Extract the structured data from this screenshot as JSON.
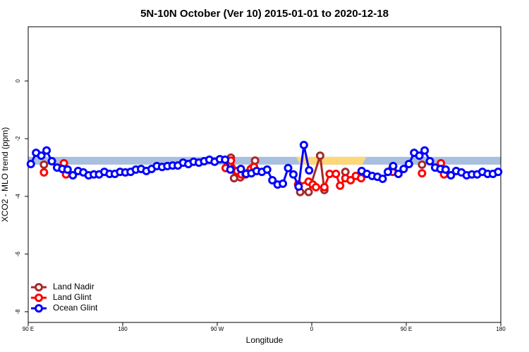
{
  "chart_data": {
    "type": "line",
    "title": "5N-10N October (Ver 10)   2015-01-01 to 2020-12-18",
    "x_label": "Longitude",
    "y_label": "XCO2 - MLO trend (ppm)",
    "xlim": [
      90,
      540
    ],
    "xticks": [
      {
        "value": 90,
        "label": "90 E"
      },
      180,
      {
        "value": 270,
        "label": "90 W"
      },
      {
        "value": 360,
        "label": "0"
      },
      {
        "value": 450,
        "label": "90 E"
      },
      {
        "value": 540,
        "label": "180"
      }
    ],
    "ylim": [
      -8.37,
      1.88
    ],
    "yticks": [
      0,
      -2,
      -4,
      -6,
      -8
    ],
    "band": {
      "ylim": [
        -2.9,
        -2.63
      ],
      "color": "#a9bfe0",
      "highlight_color": "#fdd77a",
      "highlight_x": [
        [
          345,
          412
        ]
      ]
    },
    "legend": "bottom-left",
    "series": [
      {
        "name": "Land Nadir",
        "color": "#a52a2a",
        "x": [
          105,
          283,
          286,
          292,
          306,
          349,
          357,
          368,
          372,
          392,
          437,
          465
        ],
        "values": [
          -2.9,
          -2.66,
          -3.37,
          -3.34,
          -2.76,
          -3.85,
          -3.85,
          -2.59,
          -3.78,
          -3.15,
          -3.0,
          -2.9
        ]
      },
      {
        "name": "Land Glint",
        "color": "#ff0000",
        "x": [
          105,
          124,
          126,
          278,
          283,
          289,
          293,
          297,
          302,
          305,
          347,
          357,
          361,
          364,
          372,
          377,
          383,
          387,
          392,
          397,
          402,
          407,
          437,
          465,
          483,
          486
        ],
        "values": [
          -3.17,
          -2.85,
          -3.24,
          -3.02,
          -2.76,
          -3.12,
          -3.24,
          -3.24,
          -3.05,
          -2.98,
          -3.59,
          -3.49,
          -3.59,
          -3.68,
          -3.68,
          -3.22,
          -3.22,
          -3.63,
          -3.37,
          -3.44,
          -3.29,
          -3.37,
          -3.15,
          -3.2,
          -2.85,
          -3.24
        ]
      },
      {
        "name": "Ocean Glint",
        "color": "#0000ff",
        "x": [
          92.5,
          97.5,
          102.5,
          107.5,
          112.5,
          117.5,
          122.5,
          127.5,
          132.5,
          137.5,
          142.5,
          147.5,
          152.5,
          157.5,
          162.5,
          167.5,
          172.5,
          177.5,
          182.5,
          187.5,
          192.5,
          197.5,
          202.5,
          207.5,
          212.5,
          217.5,
          222.5,
          227.5,
          232.5,
          237.5,
          242.5,
          247.5,
          252.5,
          257.5,
          262.5,
          267.5,
          272.5,
          277.5,
          282.5,
          287.5,
          292.5,
          297.5,
          302.5,
          307.5,
          312.5,
          317.5,
          322.5,
          327.5,
          332.5,
          337.5,
          342.5,
          347.5,
          352.5,
          357.5,
          362.5,
          367.5,
          372.5,
          377.5,
          382.5,
          387.5,
          392.5,
          397.5,
          402.5,
          407.5,
          412.5,
          417.5,
          422.5,
          427.5,
          432.5,
          437.5,
          442.5,
          447.5,
          452.5,
          457.5,
          462.5,
          467.5,
          472.5,
          477.5,
          482.5,
          487.5,
          492.5,
          497.5,
          502.5,
          507.5,
          512.5,
          517.5,
          522.5,
          527.5,
          532.5,
          537.5
        ],
        "values": [
          -2.88,
          -2.49,
          -2.59,
          -2.41,
          -2.78,
          -3.0,
          -3.05,
          -3.07,
          -3.27,
          -3.12,
          -3.17,
          -3.27,
          -3.24,
          -3.24,
          -3.15,
          -3.22,
          -3.22,
          -3.15,
          -3.17,
          -3.15,
          -3.07,
          -3.05,
          -3.12,
          -3.05,
          -2.95,
          -2.98,
          -2.95,
          -2.93,
          -2.93,
          -2.83,
          -2.88,
          -2.8,
          -2.83,
          -2.78,
          -2.73,
          -2.8,
          -2.71,
          -2.73,
          -3.07,
          null,
          -3.05,
          -3.22,
          -3.2,
          -3.12,
          -3.15,
          -3.07,
          -3.44,
          -3.59,
          -3.56,
          -3.02,
          -3.24,
          -3.66,
          -2.22,
          -3.1,
          null,
          null,
          null,
          null,
          null,
          null,
          null,
          null,
          null,
          -3.12,
          -3.22,
          -3.29,
          -3.32,
          -3.39,
          -3.15,
          -2.95,
          -3.22,
          -3.05,
          -2.88,
          -2.49,
          -2.59,
          -2.41,
          -2.78,
          -3.0,
          -3.05,
          -3.07,
          -3.27,
          -3.12,
          -3.17,
          -3.27,
          -3.24,
          -3.24,
          -3.15,
          -3.22,
          -3.22,
          -3.15
        ]
      }
    ]
  }
}
